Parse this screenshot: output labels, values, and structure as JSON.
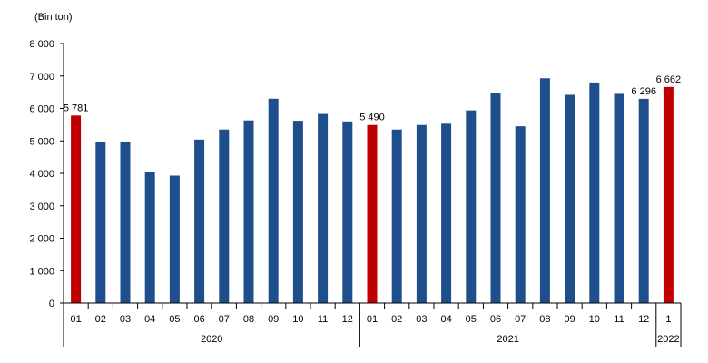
{
  "chart_data": {
    "type": "bar",
    "unit_label": "(Bin ton)",
    "ylim": [
      0,
      8000
    ],
    "yticks": [
      0,
      1000,
      2000,
      3000,
      4000,
      5000,
      6000,
      7000,
      8000
    ],
    "ytick_labels": [
      "0",
      "1 000",
      "2 000",
      "3 000",
      "4 000",
      "5 000",
      "6 000",
      "7 000",
      "8 000"
    ],
    "grid": false,
    "colors": {
      "default": "#1f4e8c",
      "highlight": "#c00000"
    },
    "bars": [
      {
        "month": "01",
        "value": 5781,
        "highlight": true,
        "label": "5 781"
      },
      {
        "month": "02",
        "value": 4970
      },
      {
        "month": "03",
        "value": 4980
      },
      {
        "month": "04",
        "value": 4030
      },
      {
        "month": "05",
        "value": 3930
      },
      {
        "month": "06",
        "value": 5040
      },
      {
        "month": "07",
        "value": 5350
      },
      {
        "month": "08",
        "value": 5630
      },
      {
        "month": "09",
        "value": 6300
      },
      {
        "month": "10",
        "value": 5620
      },
      {
        "month": "11",
        "value": 5830
      },
      {
        "month": "12",
        "value": 5600
      },
      {
        "month": "01",
        "value": 5490,
        "highlight": true,
        "label": "5 490"
      },
      {
        "month": "02",
        "value": 5350
      },
      {
        "month": "03",
        "value": 5490
      },
      {
        "month": "04",
        "value": 5530
      },
      {
        "month": "05",
        "value": 5940
      },
      {
        "month": "06",
        "value": 6490
      },
      {
        "month": "07",
        "value": 5450
      },
      {
        "month": "08",
        "value": 6930
      },
      {
        "month": "09",
        "value": 6420
      },
      {
        "month": "10",
        "value": 6800
      },
      {
        "month": "11",
        "value": 6450
      },
      {
        "month": "12",
        "value": 6296,
        "label": "6 296"
      },
      {
        "month": "1",
        "value": 6662,
        "highlight": true,
        "label": "6 662"
      }
    ],
    "years": [
      {
        "label": "2020",
        "first": 0,
        "last": 11
      },
      {
        "label": "2021",
        "first": 12,
        "last": 23
      },
      {
        "label": "2022",
        "first": 24,
        "last": 24
      }
    ]
  }
}
